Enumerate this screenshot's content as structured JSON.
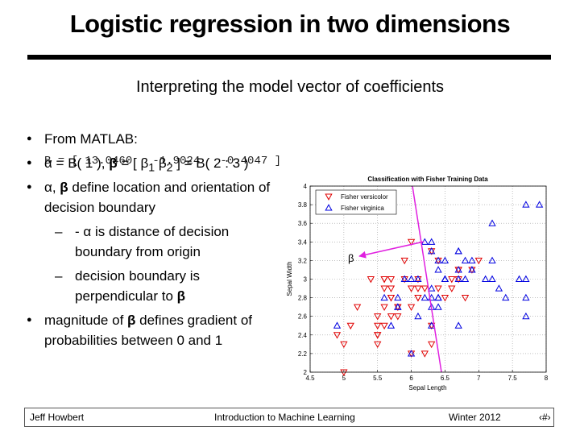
{
  "title": "Logistic regression in two dimensions",
  "subtitle": "Interpreting the model vector of coefficients",
  "bullets": [
    {
      "parts": [
        "From MATLAB:",
        "B = [ 13.0460   -1.9024   -0.4047 ]"
      ]
    },
    {
      "parts": [
        "α",
        " = B( 1 ), ",
        "β",
        " = [ ",
        "β",
        "1",
        " ",
        "β",
        "2",
        " ] = B( 2 : 3 )"
      ]
    },
    {
      "parts": [
        "α",
        ", ",
        "β",
        " define location and orientation of decision boundary"
      ],
      "subbullets": [
        {
          "parts": [
            "- ",
            "α",
            " is distance of decision boundary from origin"
          ]
        },
        {
          "parts": [
            "decision boundary is perpendicular to ",
            "β"
          ]
        }
      ]
    },
    {
      "parts": [
        "magnitude of ",
        "β",
        " defines gradient of probabilities between 0 and 1"
      ]
    }
  ],
  "chart_data": {
    "type": "scatter",
    "title": "Classification with Fisher Training Data",
    "x_label": "Sepal Length",
    "y_label": "Sepal Width",
    "xlim": [
      4.5,
      8
    ],
    "xticks": [
      4.5,
      5,
      5.5,
      6,
      6.5,
      7,
      7.5,
      8
    ],
    "ylim": [
      2,
      4
    ],
    "yticks": [
      2,
      2.2,
      2.4,
      2.6,
      2.8,
      3,
      3.2,
      3.4,
      3.6,
      3.8,
      4
    ],
    "grid": true,
    "legend": "upper left",
    "annotations": [
      "β"
    ],
    "series": [
      {
        "name": "Fisher versicolor",
        "color": "#e00000",
        "marker": "triangle-down",
        "x": [
          7.0,
          6.4,
          6.9,
          5.5,
          6.5,
          5.7,
          6.3,
          4.9,
          6.6,
          5.2,
          5.0,
          5.9,
          6.0,
          6.1,
          5.6,
          6.7,
          5.6,
          5.8,
          6.2,
          5.6,
          5.9,
          6.1,
          6.3,
          6.1,
          6.4,
          6.6,
          6.8,
          6.7,
          6.0,
          5.7,
          5.5,
          5.5,
          5.8,
          6.0,
          5.4,
          6.0,
          6.7,
          6.3,
          5.6,
          5.5,
          5.5,
          6.1,
          5.8,
          5.0,
          5.6,
          5.7,
          5.7,
          6.2,
          5.1,
          5.7
        ],
        "values": [
          3.2,
          3.2,
          3.1,
          2.3,
          2.8,
          2.8,
          3.3,
          2.4,
          2.9,
          2.7,
          2.0,
          3.0,
          2.2,
          2.9,
          2.9,
          3.1,
          3.0,
          2.7,
          2.2,
          2.5,
          3.2,
          2.8,
          2.5,
          2.8,
          2.9,
          3.0,
          2.8,
          3.0,
          2.9,
          2.6,
          2.4,
          2.4,
          2.7,
          2.7,
          3.0,
          3.4,
          3.1,
          2.3,
          3.0,
          2.5,
          2.6,
          3.0,
          2.6,
          2.3,
          2.7,
          3.0,
          2.9,
          2.9,
          2.5,
          2.8
        ]
      },
      {
        "name": "Fisher virginica",
        "color": "#0000e0",
        "marker": "triangle-up",
        "x": [
          6.3,
          5.8,
          7.1,
          6.3,
          6.5,
          7.6,
          4.9,
          7.3,
          6.7,
          7.2,
          6.5,
          6.4,
          6.8,
          5.7,
          5.8,
          6.4,
          6.5,
          7.7,
          7.7,
          6.0,
          6.9,
          5.6,
          7.7,
          6.3,
          6.7,
          7.2,
          6.2,
          6.1,
          6.4,
          7.2,
          7.4,
          7.9,
          6.4,
          6.3,
          6.1,
          7.7,
          6.3,
          6.4,
          6.0,
          6.9,
          6.7,
          6.9,
          5.8,
          6.8,
          6.7,
          6.7,
          6.3,
          6.5,
          6.2,
          5.9
        ],
        "values": [
          3.3,
          2.7,
          3.0,
          2.9,
          3.0,
          3.0,
          2.5,
          2.9,
          2.5,
          3.6,
          3.2,
          2.7,
          3.0,
          2.5,
          2.8,
          3.2,
          3.0,
          3.8,
          2.6,
          2.2,
          3.2,
          2.8,
          2.8,
          2.7,
          3.3,
          3.2,
          2.8,
          3.0,
          2.8,
          3.0,
          2.8,
          3.8,
          2.8,
          2.8,
          2.6,
          3.0,
          3.4,
          3.1,
          3.0,
          3.1,
          3.1,
          3.1,
          2.7,
          3.2,
          3.3,
          3.0,
          2.5,
          3.0,
          3.4,
          3.0
        ]
      }
    ]
  },
  "footer": {
    "author": "Jeff Howbert",
    "course": "Introduction to Machine Learning",
    "term": "Winter 2012",
    "page": "‹#›"
  }
}
